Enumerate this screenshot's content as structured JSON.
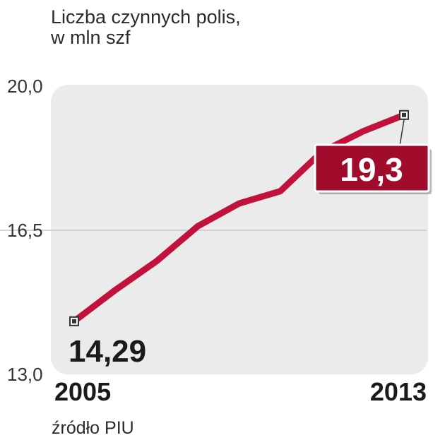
{
  "title": {
    "line1": "Liczba czynnych polis,",
    "line2": "w mln szf"
  },
  "source": "źródło PIU",
  "colors": {
    "line": "#c0123c",
    "panel": "#ebebeb",
    "label_box": "#a20c2c",
    "grid": "#c9c9c9"
  },
  "chart_data": {
    "type": "line",
    "title": "Liczba czynnych polis, w mln szf",
    "xlabel": "",
    "ylabel": "",
    "x": [
      2005,
      2006,
      2007,
      2008,
      2009,
      2010,
      2011,
      2012,
      2013
    ],
    "x_tick_labels": [
      "2005",
      "2013"
    ],
    "y_tick_labels": [
      "20,0",
      "16,5",
      "13,0"
    ],
    "ylim": [
      13.0,
      20.0
    ],
    "yticks": [
      13.0,
      16.5,
      20.0
    ],
    "grid": true,
    "series": [
      {
        "values": [
          14.29,
          15.05,
          15.75,
          16.6,
          17.15,
          17.45,
          18.4,
          18.9,
          19.3
        ]
      }
    ],
    "annotations": {
      "start": "14,29",
      "end": "19,3"
    }
  }
}
